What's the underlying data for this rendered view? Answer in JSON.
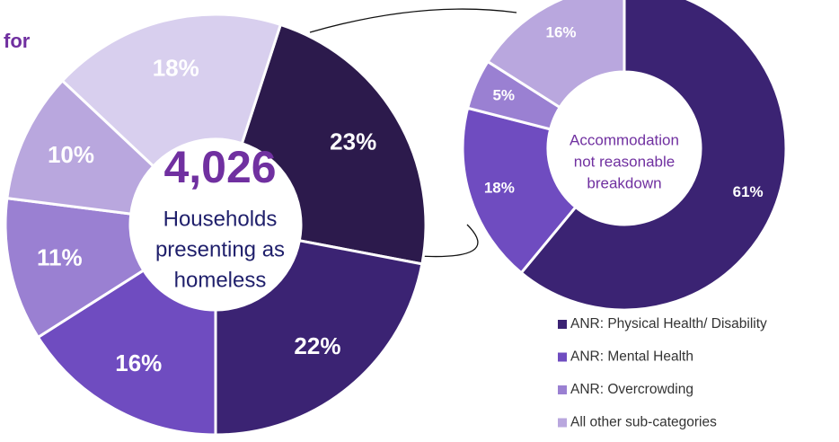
{
  "chart_data": [
    {
      "type": "donut",
      "title": "for",
      "center_value": "4,026",
      "center_lines": [
        "Households",
        "presenting as",
        "homeless"
      ],
      "values": [
        23,
        22,
        16,
        11,
        10,
        18
      ],
      "value_labels": [
        "23%",
        "22%",
        "16%",
        "11%",
        "10%",
        "18%"
      ],
      "colors": [
        "#2c1a4c",
        "#3b2373",
        "#6f4cc0",
        "#9a80d2",
        "#b9a7de",
        "#d8cfee"
      ]
    },
    {
      "type": "donut",
      "center_lines": [
        "Accommodation",
        "not reasonable",
        "breakdown"
      ],
      "categories": [
        "ANR: Physical Health/ Disability",
        "ANR: Mental Health",
        "ANR: Overcrowding",
        "All other sub-categories"
      ],
      "values": [
        61,
        18,
        5,
        16
      ],
      "value_labels": [
        "61%",
        "18%",
        "5%",
        "16%"
      ],
      "colors": [
        "#3b2373",
        "#6f4cc0",
        "#9a80d2",
        "#b9a7de"
      ]
    }
  ]
}
